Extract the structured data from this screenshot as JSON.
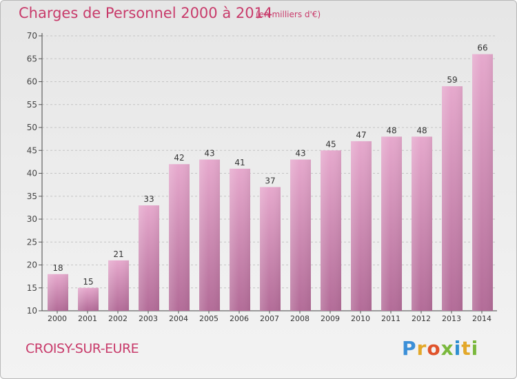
{
  "header": {
    "title": "Charges de Personnel 2000 à 2014",
    "subtitle": "(en milliers d'€)"
  },
  "footer": {
    "commune": "CROISY-SUR-EURE",
    "logo": "Proxiti"
  },
  "colors": {
    "title": "#c83a6a",
    "bar_top": "#e6a9cd",
    "bar_bottom": "#b36c98",
    "axis": "#333333"
  },
  "chart_data": {
    "type": "bar",
    "title": "Charges de Personnel 2000 à 2014",
    "subtitle": "(en milliers d'€)",
    "xlabel": "",
    "ylabel": "",
    "categories": [
      "2000",
      "2001",
      "2002",
      "2003",
      "2004",
      "2005",
      "2006",
      "2007",
      "2008",
      "2009",
      "2010",
      "2011",
      "2012",
      "2013",
      "2014"
    ],
    "values": [
      18,
      15,
      21,
      33,
      42,
      43,
      41,
      37,
      43,
      45,
      47,
      48,
      48,
      59,
      66
    ],
    "ylim": [
      10,
      70
    ],
    "yticks": [
      10,
      15,
      20,
      25,
      30,
      35,
      40,
      45,
      50,
      55,
      60,
      65,
      70
    ],
    "grid": true,
    "data_labels": true
  }
}
